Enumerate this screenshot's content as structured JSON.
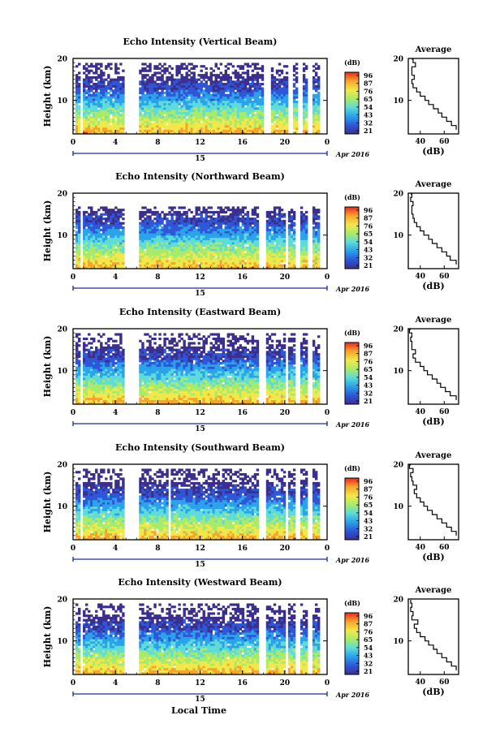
{
  "chart_data": [
    {
      "type": "heatmap",
      "title": "Echo Intensity (Vertical Beam)",
      "xlabel": "",
      "ylabel": "Height (km)",
      "xlim": [
        0,
        24
      ],
      "ylim": [
        2,
        20
      ],
      "xticks": [
        "0",
        "4",
        "8",
        "12",
        "16",
        "20",
        "0"
      ],
      "yticks": [
        "10",
        "20"
      ],
      "date_day": "15",
      "date_label": "Apr 2016",
      "colorbar": {
        "unit": "(dB)",
        "ticks": [
          "96",
          "87",
          "76",
          "65",
          "54",
          "43",
          "32",
          "21"
        ]
      },
      "data_gaps_hours": [
        [
          0.7,
          1.0
        ],
        [
          4.8,
          6.2
        ],
        [
          18.0,
          18.6
        ],
        [
          20.4,
          20.7
        ],
        [
          21.3,
          21.7
        ],
        [
          22.2,
          22.6
        ]
      ],
      "echo_top_km": 19,
      "average_profile": {
        "title": "Average",
        "xlabel": "(dB)",
        "xticks": [
          "40",
          "60"
        ],
        "xlim": [
          30,
          72
        ],
        "yticks": [
          "10",
          "20"
        ],
        "height_km": [
          3,
          4,
          5,
          6,
          7,
          8,
          9,
          10,
          11,
          12,
          13,
          14,
          15,
          16,
          17,
          18,
          19,
          19.8
        ],
        "intensity_db": [
          70,
          66,
          62,
          58,
          55,
          51,
          47,
          44,
          40,
          37,
          34,
          33,
          35,
          33,
          33,
          36,
          34,
          33
        ]
      }
    },
    {
      "type": "heatmap",
      "title": "Echo Intensity (Northward Beam)",
      "xlabel": "",
      "ylabel": "Height (km)",
      "xlim": [
        0,
        24
      ],
      "ylim": [
        2,
        20
      ],
      "xticks": [
        "0",
        "4",
        "8",
        "12",
        "16",
        "20",
        "0"
      ],
      "yticks": [
        "10",
        "20"
      ],
      "date_day": "15",
      "date_label": "Apr 2016",
      "colorbar": {
        "unit": "(dB)",
        "ticks": [
          "96",
          "87",
          "76",
          "65",
          "54",
          "43",
          "32",
          "21"
        ]
      },
      "data_gaps_hours": [
        [
          0.7,
          1.0
        ],
        [
          4.8,
          6.2
        ],
        [
          17.6,
          18.3
        ],
        [
          20.0,
          20.3
        ],
        [
          21.0,
          21.4
        ],
        [
          22.1,
          22.5
        ]
      ],
      "echo_top_km": 17,
      "average_profile": {
        "title": "Average",
        "xlabel": "(dB)",
        "xticks": [
          "40",
          "60"
        ],
        "xlim": [
          30,
          72
        ],
        "yticks": [
          "10",
          "20"
        ],
        "height_km": [
          3,
          4,
          5,
          6,
          7,
          8,
          9,
          10,
          11,
          12,
          13,
          14,
          15,
          16,
          17,
          18,
          19,
          19.8
        ],
        "intensity_db": [
          70,
          65,
          62,
          58,
          54,
          50,
          47,
          43,
          40,
          37,
          35,
          34,
          33,
          33,
          34,
          32,
          33,
          32
        ]
      }
    },
    {
      "type": "heatmap",
      "title": "Echo Intensity (Eastward Beam)",
      "xlabel": "",
      "ylabel": "Height (km)",
      "xlim": [
        0,
        24
      ],
      "ylim": [
        2,
        20
      ],
      "xticks": [
        "0",
        "4",
        "8",
        "12",
        "16",
        "20",
        "0"
      ],
      "yticks": [
        "10",
        "20"
      ],
      "date_day": "15",
      "date_label": "Apr 2016",
      "colorbar": {
        "unit": "(dB)",
        "ticks": [
          "96",
          "87",
          "76",
          "65",
          "54",
          "43",
          "32",
          "21"
        ]
      },
      "data_gaps_hours": [
        [
          0.7,
          1.0
        ],
        [
          4.8,
          6.2
        ],
        [
          17.6,
          18.2
        ],
        [
          20.0,
          20.3
        ],
        [
          21.0,
          21.4
        ],
        [
          22.1,
          22.5
        ]
      ],
      "echo_top_km": 19,
      "average_profile": {
        "title": "Average",
        "xlabel": "(dB)",
        "xticks": [
          "40",
          "60"
        ],
        "xlim": [
          30,
          72
        ],
        "yticks": [
          "10",
          "20"
        ],
        "height_km": [
          3,
          4,
          5,
          6,
          7,
          8,
          9,
          10,
          11,
          12,
          13,
          14,
          15,
          16,
          17,
          18,
          19,
          19.8
        ],
        "intensity_db": [
          70,
          65,
          61,
          57,
          54,
          50,
          46,
          43,
          40,
          36,
          34,
          36,
          33,
          33,
          32,
          33,
          31,
          32
        ]
      }
    },
    {
      "type": "heatmap",
      "title": "Echo Intensity (Southward Beam)",
      "xlabel": "",
      "ylabel": "Height (km)",
      "xlim": [
        0,
        24
      ],
      "ylim": [
        2,
        20
      ],
      "xticks": [
        "0",
        "4",
        "8",
        "12",
        "16",
        "20",
        "0"
      ],
      "yticks": [
        "10",
        "20"
      ],
      "date_day": "15",
      "date_label": "Apr 2016",
      "colorbar": {
        "unit": "(dB)",
        "ticks": [
          "96",
          "87",
          "76",
          "65",
          "54",
          "43",
          "32",
          "21"
        ]
      },
      "data_gaps_hours": [
        [
          0.7,
          1.0
        ],
        [
          4.8,
          6.2
        ],
        [
          9.1,
          9.3
        ],
        [
          17.6,
          18.2
        ],
        [
          20.0,
          20.3
        ],
        [
          21.0,
          21.4
        ],
        [
          22.1,
          22.5
        ]
      ],
      "echo_top_km": 19,
      "average_profile": {
        "title": "Average",
        "xlabel": "(dB)",
        "xticks": [
          "40",
          "60"
        ],
        "xlim": [
          30,
          72
        ],
        "yticks": [
          "10",
          "20"
        ],
        "height_km": [
          3,
          4,
          5,
          6,
          7,
          8,
          9,
          10,
          11,
          12,
          13,
          14,
          15,
          16,
          17,
          18,
          19,
          19.8
        ],
        "intensity_db": [
          70,
          66,
          62,
          58,
          54,
          50,
          46,
          43,
          40,
          37,
          35,
          37,
          34,
          33,
          32,
          34,
          31,
          32
        ]
      }
    },
    {
      "type": "heatmap",
      "title": "Echo Intensity (Westward Beam)",
      "xlabel": "Local Time",
      "ylabel": "Height (km)",
      "xlim": [
        0,
        24
      ],
      "ylim": [
        2,
        20
      ],
      "xticks": [
        "0",
        "4",
        "8",
        "12",
        "16",
        "20",
        "0"
      ],
      "yticks": [
        "10",
        "20"
      ],
      "date_day": "15",
      "date_label": "Apr 2016",
      "colorbar": {
        "unit": "(dB)",
        "ticks": [
          "96",
          "87",
          "76",
          "65",
          "54",
          "43",
          "32",
          "21"
        ]
      },
      "data_gaps_hours": [
        [
          0.7,
          1.0
        ],
        [
          4.8,
          6.2
        ],
        [
          17.6,
          18.2
        ],
        [
          20.0,
          20.3
        ],
        [
          21.0,
          21.4
        ],
        [
          22.1,
          22.5
        ]
      ],
      "echo_top_km": 19,
      "average_profile": {
        "title": "Average",
        "xlabel": "(dB)",
        "xticks": [
          "40",
          "60"
        ],
        "xlim": [
          30,
          72
        ],
        "yticks": [
          "10",
          "20"
        ],
        "height_km": [
          3,
          4,
          5,
          6,
          7,
          8,
          9,
          10,
          11,
          12,
          13,
          14,
          15,
          16,
          17,
          18,
          19,
          19.8
        ],
        "intensity_db": [
          70,
          66,
          62,
          58,
          54,
          51,
          47,
          44,
          40,
          37,
          35,
          38,
          33,
          34,
          32,
          33,
          32,
          32
        ]
      }
    }
  ],
  "colors": {
    "colormap": [
      "#3b2f8e",
      "#2e56d6",
      "#2ba3ea",
      "#5fdcd8",
      "#a8eb6b",
      "#f2e84b",
      "#f5a42c",
      "#e8281e"
    ]
  }
}
